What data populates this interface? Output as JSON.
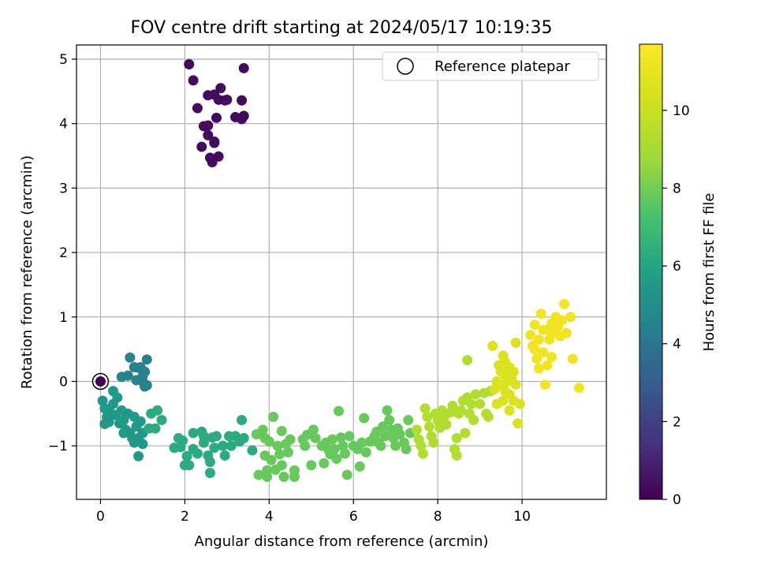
{
  "chart_data": {
    "type": "scatter",
    "title": "FOV centre drift starting at 2024/05/17 10:19:35",
    "xlabel": "Angular distance from reference (arcmin)",
    "ylabel": "Rotation from reference (arcmin)",
    "xlim": [
      -0.57,
      12.0
    ],
    "ylim": [
      -1.83,
      5.22
    ],
    "x_ticks": [
      0,
      2,
      4,
      6,
      8,
      10
    ],
    "y_ticks": [
      -1,
      0,
      1,
      2,
      3,
      4,
      5
    ],
    "grid": true,
    "legend": {
      "position": "top-right",
      "entries": [
        "Reference platepar"
      ]
    },
    "reference_point": {
      "x": 0,
      "y": 0
    },
    "colorbar": {
      "label": "Hours from first FF file",
      "colormap": "viridis",
      "range": [
        0,
        11.7
      ],
      "ticks": [
        0,
        2,
        4,
        6,
        8,
        10
      ]
    },
    "series": [
      {
        "hours": 0.3,
        "points": [
          [
            2.1,
            4.92
          ],
          [
            2.2,
            4.67
          ],
          [
            2.3,
            4.24
          ],
          [
            2.55,
            4.44
          ],
          [
            2.7,
            4.45
          ],
          [
            2.85,
            4.55
          ],
          [
            2.8,
            4.37
          ],
          [
            3.0,
            4.37
          ],
          [
            2.95,
            4.36
          ],
          [
            3.35,
            4.36
          ],
          [
            3.4,
            4.86
          ],
          [
            3.2,
            4.1
          ],
          [
            3.35,
            4.07
          ],
          [
            3.4,
            4.12
          ],
          [
            2.75,
            4.09
          ],
          [
            2.45,
            3.96
          ],
          [
            2.55,
            3.97
          ],
          [
            2.4,
            3.64
          ],
          [
            2.55,
            3.82
          ],
          [
            2.7,
            3.72
          ],
          [
            2.7,
            3.7
          ],
          [
            2.6,
            3.47
          ],
          [
            2.8,
            3.49
          ],
          [
            2.65,
            3.4
          ]
        ]
      },
      {
        "hours": 4.5,
        "points": [
          [
            0.7,
            0.37
          ],
          [
            0.5,
            0.07
          ],
          [
            0.65,
            0.09
          ],
          [
            0.8,
            0.22
          ],
          [
            0.9,
            0.21
          ],
          [
            0.95,
            0.22
          ],
          [
            1.1,
            0.34
          ],
          [
            1.05,
            0.15
          ],
          [
            1.0,
            0.0
          ],
          [
            1.1,
            -0.06
          ],
          [
            0.85,
            0.02
          ],
          [
            1.05,
            -0.08
          ],
          [
            1.0,
            0.08
          ]
        ]
      },
      {
        "hours": 5.5,
        "points": [
          [
            0.05,
            -0.3
          ],
          [
            0.1,
            -0.42
          ],
          [
            0.2,
            -0.45
          ],
          [
            0.3,
            -0.15
          ],
          [
            0.3,
            -0.35
          ],
          [
            0.4,
            -0.25
          ],
          [
            0.15,
            -0.55
          ],
          [
            0.2,
            -0.63
          ],
          [
            0.1,
            -0.66
          ],
          [
            0.35,
            -0.52
          ],
          [
            0.5,
            -0.45
          ],
          [
            0.45,
            -0.65
          ],
          [
            0.55,
            -0.6
          ],
          [
            0.65,
            -0.5
          ],
          [
            0.6,
            -0.75
          ],
          [
            0.7,
            -0.8
          ],
          [
            0.8,
            -0.55
          ],
          [
            0.85,
            -0.7
          ],
          [
            0.9,
            -0.88
          ],
          [
            0.75,
            -0.88
          ],
          [
            0.95,
            -0.62
          ],
          [
            1.0,
            -0.8
          ],
          [
            0.8,
            -0.95
          ],
          [
            0.9,
            -1.16
          ],
          [
            1.0,
            -0.97
          ],
          [
            0.55,
            -0.8
          ]
        ]
      },
      {
        "hours": 6.3,
        "points": [
          [
            1.2,
            -0.5
          ],
          [
            1.35,
            -0.45
          ],
          [
            1.3,
            -0.73
          ],
          [
            1.45,
            -0.6
          ],
          [
            1.15,
            -0.73
          ],
          [
            1.75,
            -1.03
          ],
          [
            1.85,
            -0.88
          ],
          [
            1.9,
            -1.02
          ],
          [
            1.95,
            -0.92
          ],
          [
            2.0,
            -1.3
          ],
          [
            2.05,
            -1.16
          ],
          [
            2.1,
            -1.3
          ],
          [
            2.2,
            -1.05
          ],
          [
            2.2,
            -0.8
          ],
          [
            2.3,
            -1.12
          ],
          [
            2.4,
            -0.78
          ],
          [
            2.45,
            -0.85
          ],
          [
            2.45,
            -0.95
          ],
          [
            2.55,
            -1.15
          ],
          [
            2.6,
            -1.25
          ],
          [
            2.6,
            -1.42
          ],
          [
            2.65,
            -0.87
          ],
          [
            2.7,
            -1.03
          ],
          [
            2.75,
            -0.85
          ],
          [
            2.9,
            -1.0
          ],
          [
            2.95,
            -1.15
          ],
          [
            3.05,
            -0.85
          ],
          [
            3.1,
            -1.0
          ],
          [
            3.2,
            -0.85
          ],
          [
            3.3,
            -0.93
          ],
          [
            3.35,
            -0.6
          ],
          [
            3.4,
            -0.88
          ],
          [
            3.6,
            -1.07
          ]
        ]
      },
      {
        "hours": 7.8,
        "points": [
          [
            3.7,
            -0.82
          ],
          [
            3.75,
            -1.45
          ],
          [
            3.85,
            -0.75
          ],
          [
            3.9,
            -0.88
          ],
          [
            3.9,
            -1.15
          ],
          [
            3.95,
            -1.38
          ],
          [
            3.95,
            -1.48
          ],
          [
            4.0,
            -0.93
          ],
          [
            4.05,
            -1.22
          ],
          [
            4.1,
            -0.55
          ],
          [
            4.15,
            -1.37
          ],
          [
            4.2,
            -1.0
          ],
          [
            4.25,
            -1.13
          ],
          [
            4.3,
            -0.77
          ],
          [
            4.3,
            -1.3
          ],
          [
            4.35,
            -1.48
          ],
          [
            4.4,
            -0.97
          ],
          [
            4.45,
            -1.1
          ],
          [
            4.5,
            -0.9
          ],
          [
            4.6,
            -1.38
          ],
          [
            4.6,
            -1.48
          ],
          [
            4.8,
            -0.9
          ],
          [
            4.85,
            -1.0
          ],
          [
            4.9,
            -0.83
          ],
          [
            5.0,
            -1.3
          ],
          [
            5.05,
            -0.75
          ],
          [
            5.1,
            -0.88
          ],
          [
            5.25,
            -1.0
          ],
          [
            5.3,
            -1.27
          ],
          [
            5.35,
            -0.95
          ],
          [
            5.4,
            -1.05
          ],
          [
            5.45,
            -1.13
          ],
          [
            5.5,
            -0.9
          ],
          [
            5.55,
            -1.05
          ],
          [
            5.6,
            -1.2
          ],
          [
            5.65,
            -0.46
          ],
          [
            5.7,
            -0.87
          ],
          [
            5.75,
            -1.0
          ],
          [
            5.8,
            -1.12
          ],
          [
            5.85,
            -1.45
          ],
          [
            5.9,
            -0.85
          ],
          [
            6.0,
            -1.0
          ],
          [
            6.1,
            -1.05
          ],
          [
            6.15,
            -1.32
          ],
          [
            6.2,
            -0.95
          ],
          [
            6.25,
            -0.57
          ],
          [
            6.3,
            -1.1
          ],
          [
            6.4,
            -0.93
          ],
          [
            6.5,
            -0.85
          ],
          [
            6.55,
            -0.78
          ],
          [
            6.6,
            -0.95
          ],
          [
            6.65,
            -1.0
          ],
          [
            6.7,
            -0.7
          ],
          [
            6.75,
            -0.85
          ],
          [
            6.8,
            -0.45
          ],
          [
            6.85,
            -0.6
          ],
          [
            6.9,
            -0.75
          ],
          [
            6.95,
            -0.88
          ],
          [
            7.0,
            -1.0
          ],
          [
            7.05,
            -0.73
          ],
          [
            7.1,
            -0.82
          ],
          [
            7.2,
            -0.95
          ],
          [
            7.25,
            -1.05
          ],
          [
            7.3,
            -0.6
          ],
          [
            7.35,
            -0.8
          ]
        ]
      },
      {
        "hours": 9.3,
        "points": [
          [
            7.5,
            -0.75
          ],
          [
            7.55,
            -0.9
          ],
          [
            7.6,
            -1.0
          ],
          [
            7.65,
            -1.12
          ],
          [
            7.7,
            -0.42
          ],
          [
            7.75,
            -0.55
          ],
          [
            7.8,
            -0.7
          ],
          [
            7.85,
            -0.85
          ],
          [
            7.9,
            -0.95
          ],
          [
            7.95,
            -0.5
          ],
          [
            8.0,
            -0.6
          ],
          [
            8.05,
            -0.72
          ],
          [
            8.1,
            -0.45
          ],
          [
            8.15,
            -0.55
          ],
          [
            8.2,
            -0.67
          ],
          [
            8.3,
            -0.48
          ],
          [
            8.35,
            -0.38
          ],
          [
            8.4,
            -1.05
          ],
          [
            8.45,
            -1.15
          ],
          [
            8.45,
            -0.88
          ],
          [
            8.5,
            -0.5
          ],
          [
            8.55,
            -0.45
          ],
          [
            8.6,
            -0.3
          ],
          [
            8.65,
            -0.8
          ],
          [
            8.7,
            0.33
          ],
          [
            8.7,
            -0.25
          ],
          [
            8.75,
            -0.5
          ],
          [
            8.8,
            -0.35
          ],
          [
            8.85,
            -0.6
          ],
          [
            8.9,
            -0.2
          ],
          [
            9.0,
            -0.35
          ],
          [
            9.1,
            -0.18
          ],
          [
            9.15,
            -0.5
          ],
          [
            9.2,
            -0.55
          ],
          [
            9.25,
            -0.15
          ]
        ]
      },
      {
        "hours": 10.6,
        "points": [
          [
            9.3,
            0.55
          ],
          [
            9.35,
            -0.12
          ],
          [
            9.4,
            0.0
          ],
          [
            9.45,
            0.25
          ],
          [
            9.5,
            -0.05
          ],
          [
            9.5,
            0.15
          ],
          [
            9.55,
            0.4
          ],
          [
            9.55,
            -0.3
          ],
          [
            9.6,
            0.1
          ],
          [
            9.6,
            -0.15
          ],
          [
            9.65,
            0.0
          ],
          [
            9.7,
            0.22
          ],
          [
            9.7,
            -0.45
          ],
          [
            9.75,
            0.05
          ],
          [
            9.8,
            0.15
          ],
          [
            9.8,
            -0.3
          ],
          [
            9.85,
            0.6
          ],
          [
            9.85,
            -0.05
          ],
          [
            9.9,
            -0.65
          ],
          [
            9.95,
            -0.35
          ],
          [
            9.6,
            0.3
          ],
          [
            9.4,
            -0.35
          ],
          [
            9.7,
            -0.2
          ]
        ]
      },
      {
        "hours": 11.3,
        "points": [
          [
            10.2,
            0.72
          ],
          [
            10.25,
            0.55
          ],
          [
            10.3,
            0.88
          ],
          [
            10.35,
            0.35
          ],
          [
            10.4,
            0.2
          ],
          [
            10.4,
            0.65
          ],
          [
            10.45,
            1.05
          ],
          [
            10.5,
            0.45
          ],
          [
            10.5,
            0.8
          ],
          [
            10.55,
            -0.05
          ],
          [
            10.6,
            0.25
          ],
          [
            10.65,
            0.65
          ],
          [
            10.7,
            0.9
          ],
          [
            10.7,
            0.38
          ],
          [
            10.75,
            0.75
          ],
          [
            10.8,
            1.0
          ],
          [
            10.85,
            0.85
          ],
          [
            10.9,
            0.7
          ],
          [
            10.95,
            0.95
          ],
          [
            11.0,
            1.2
          ],
          [
            11.05,
            0.75
          ],
          [
            11.15,
            1.0
          ],
          [
            11.2,
            0.35
          ],
          [
            11.35,
            -0.1
          ],
          [
            10.3,
            0.5
          ],
          [
            10.6,
            0.8
          ]
        ]
      }
    ]
  }
}
